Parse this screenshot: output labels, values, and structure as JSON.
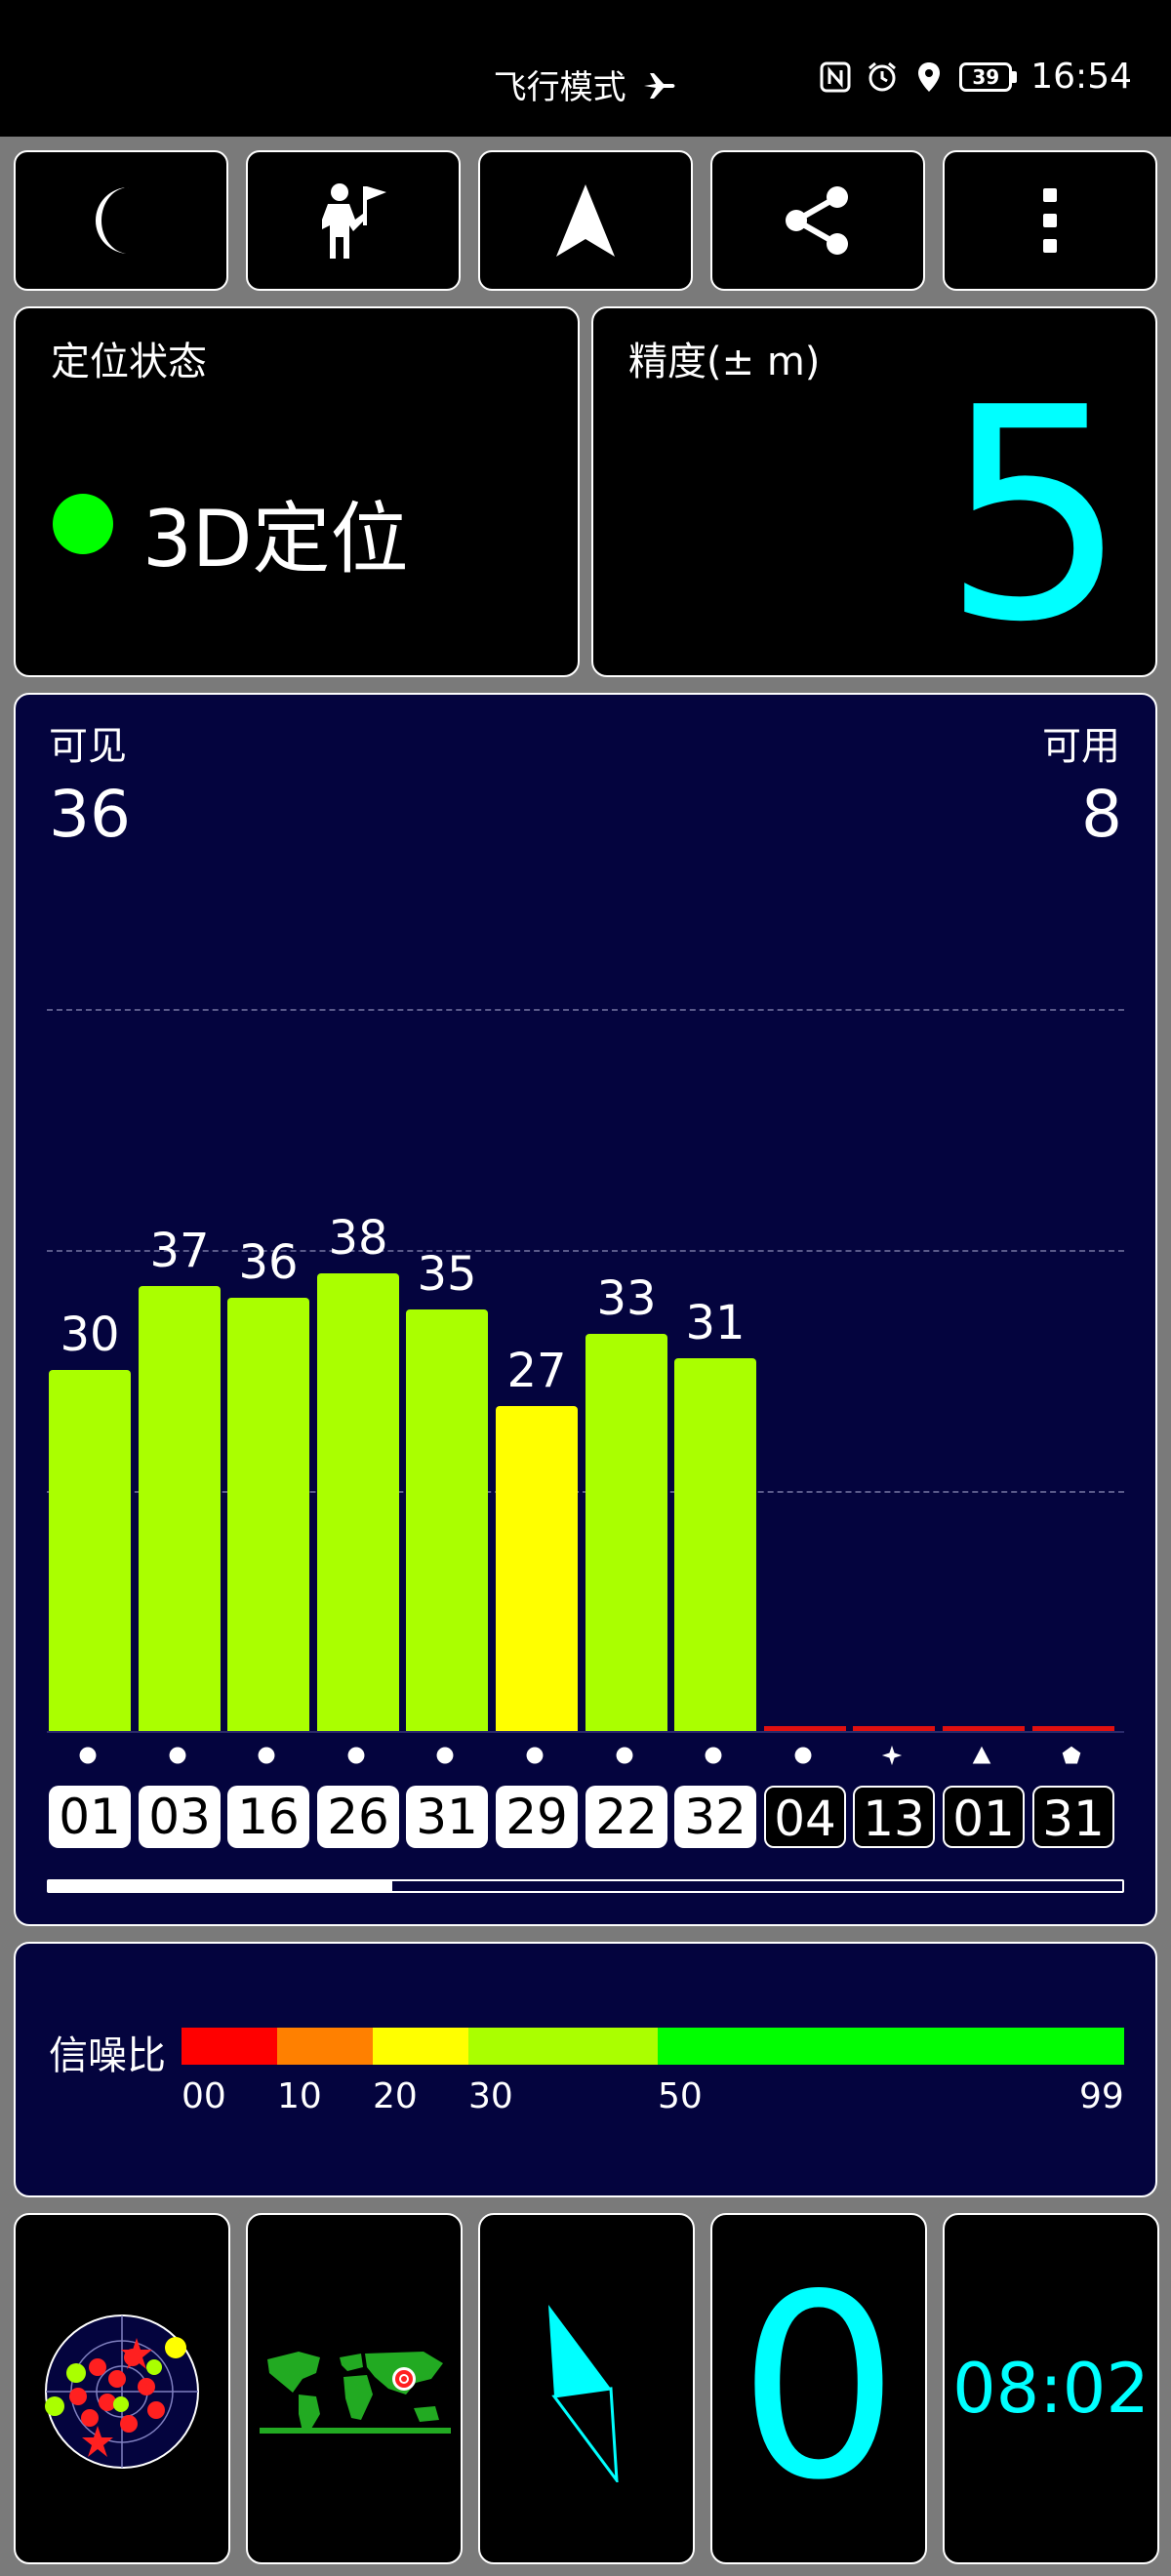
{
  "status_bar": {
    "mode_text": "飞行模式",
    "time": "16:54",
    "battery": "39"
  },
  "toolbar": {
    "buttons": [
      "night-mode",
      "waypoint",
      "navigate",
      "share",
      "more"
    ]
  },
  "fix_panel": {
    "label": "定位状态",
    "value": "3D定位",
    "indicator_color": "#00ff00"
  },
  "accuracy_panel": {
    "label": "精度(± m)",
    "value": "5",
    "color": "#00ffff"
  },
  "satellites_panel": {
    "visible_label": "可见",
    "visible_count": "36",
    "usable_label": "可用",
    "usable_count": "8",
    "scroll_position": 0.32
  },
  "snr_legend": {
    "label": "信噪比",
    "ticks": [
      "00",
      "10",
      "20",
      "30",
      "50",
      "99"
    ],
    "colors": [
      "#ff0000",
      "#ff8000",
      "#ffff00",
      "#aaff00",
      "#00ff00"
    ]
  },
  "bottom_tiles": {
    "tiles": [
      "sky-view",
      "world-map",
      "compass",
      "speed",
      "clock"
    ],
    "speed_value": "0",
    "time_value": "08:02"
  },
  "chart_data": {
    "type": "bar",
    "categories": [
      "01",
      "03",
      "16",
      "26",
      "31",
      "29",
      "22",
      "32",
      "04",
      "13",
      "01",
      "31"
    ],
    "values": [
      30,
      37,
      36,
      38,
      35,
      27,
      33,
      31,
      0,
      0,
      0,
      0
    ],
    "in_use": [
      true,
      true,
      true,
      true,
      true,
      true,
      true,
      true,
      false,
      false,
      false,
      false
    ],
    "constellation_symbols": [
      "circle",
      "circle",
      "circle",
      "circle",
      "circle",
      "circle",
      "circle",
      "circle",
      "circle",
      "star",
      "triangle",
      "pentagon"
    ],
    "value_labels": [
      "30",
      "37",
      "36",
      "38",
      "35",
      "27",
      "33",
      "31",
      "",
      "",
      "",
      ""
    ],
    "ylim": [
      0,
      60
    ],
    "grid": true
  }
}
